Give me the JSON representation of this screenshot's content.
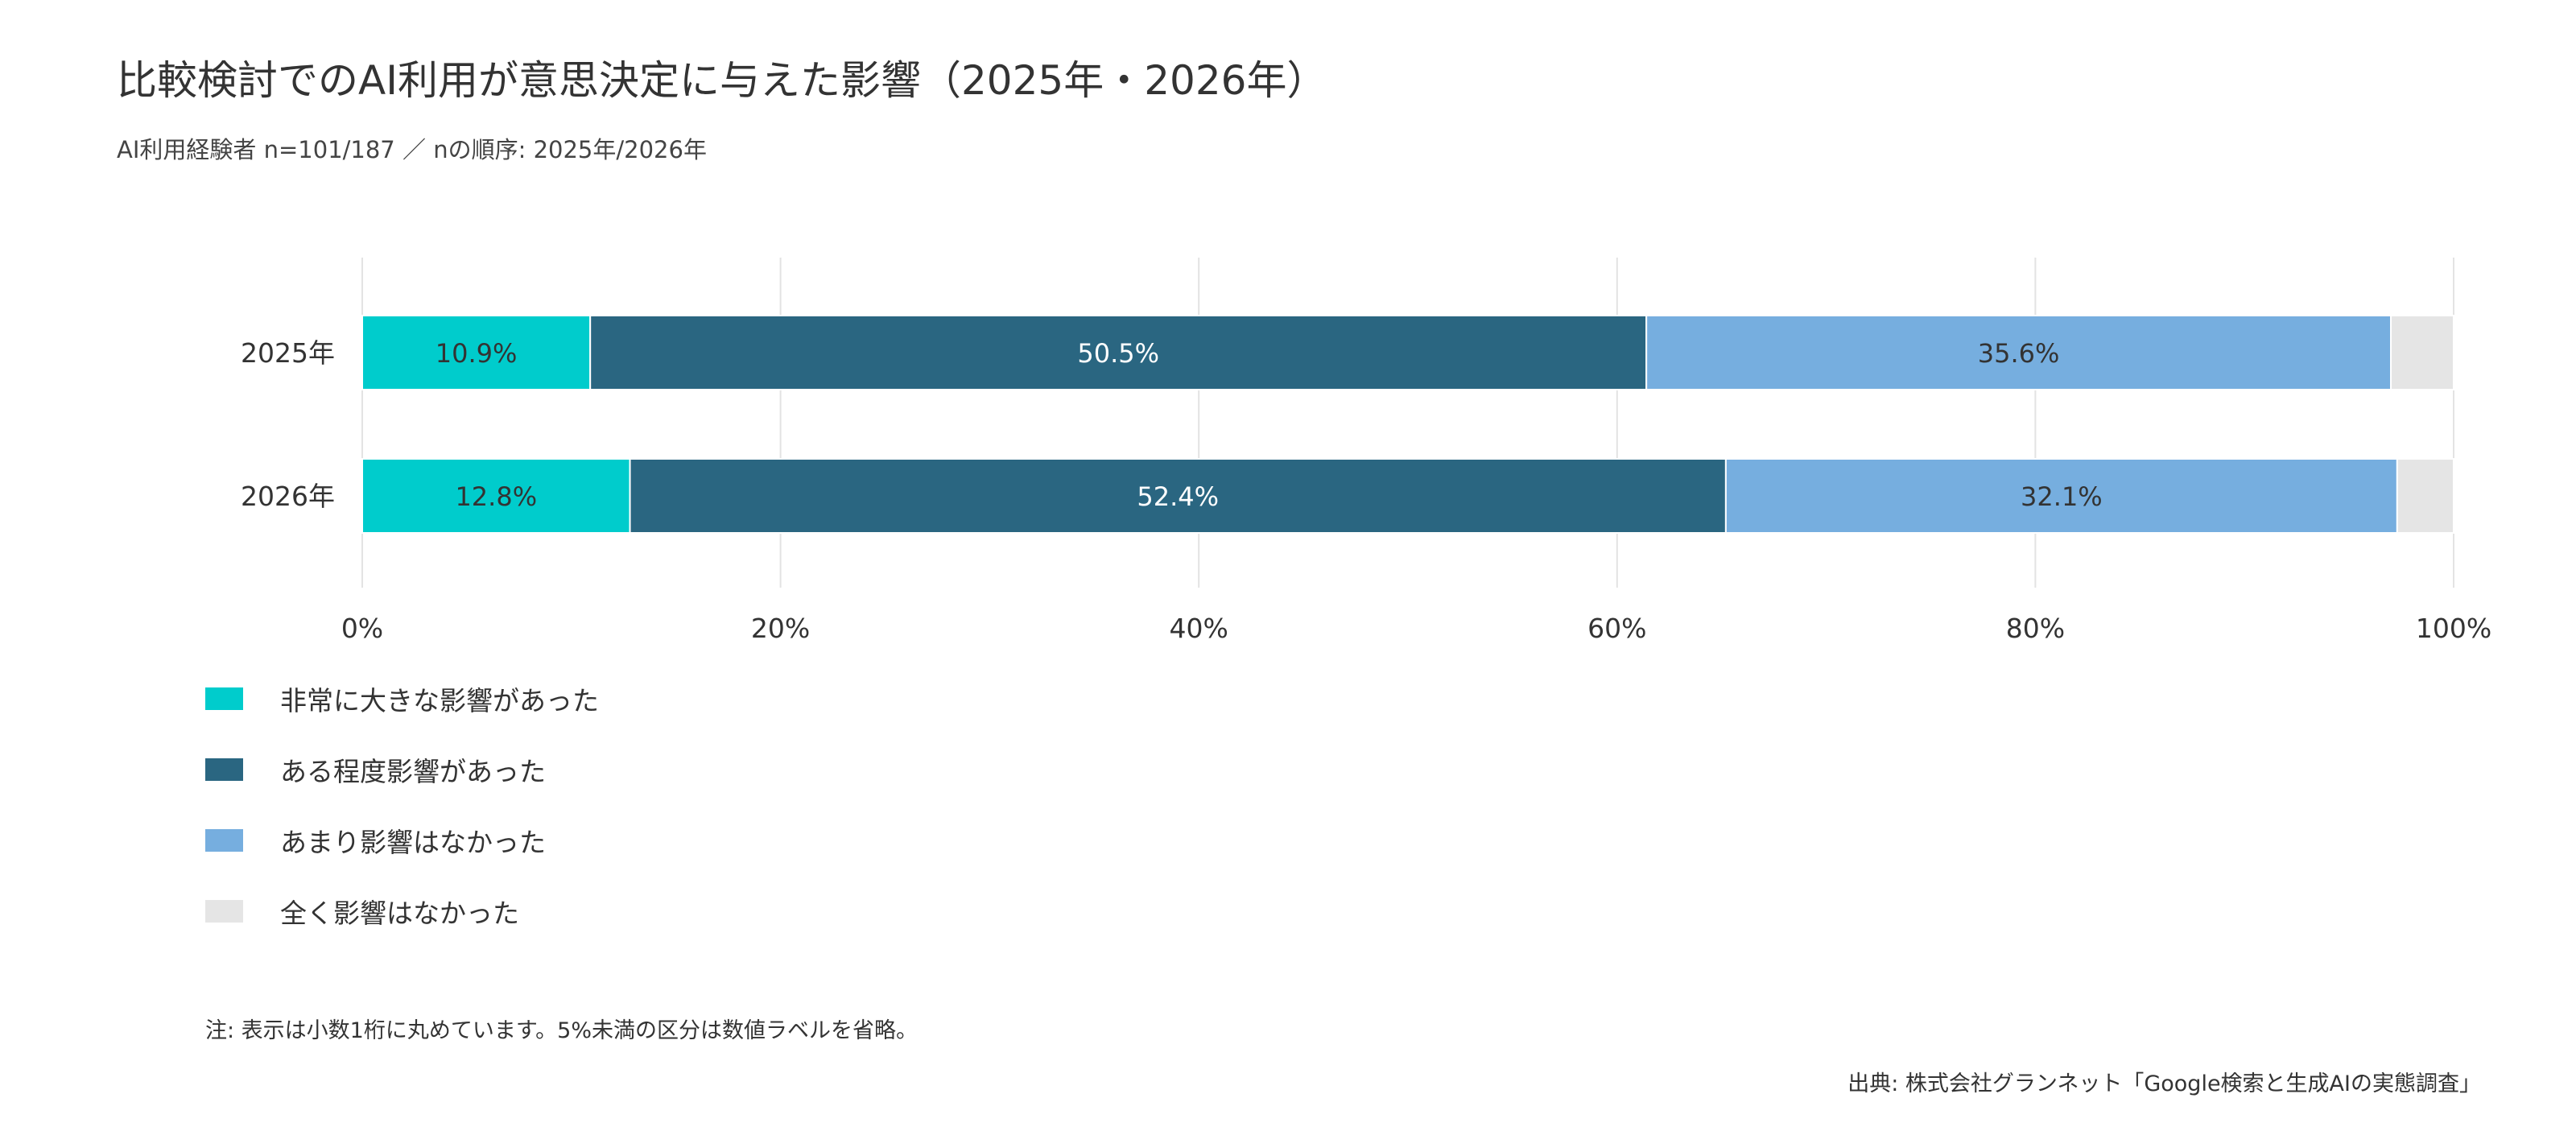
{
  "title": "比較検討でのAI利用が意思決定に与えた影響（2025年・2026年）",
  "subtitle": "AI利用経験者 n=101/187 ／ nの順序: 2025年/2026年",
  "note": "注: 表示は小数1桁に丸めています。5%未満の区分は数値ラベルを省略。",
  "source": "出典: 株式会社グランネット「Google検索と生成AIの実態調査」",
  "chart_data": {
    "type": "bar",
    "orientation": "horizontal",
    "stacked": true,
    "categories": [
      "2025年",
      "2026年"
    ],
    "series": [
      {
        "name": "非常に大きな影響があった",
        "color": "#00CCCC",
        "label_color": "#333333",
        "values": [
          10.9,
          12.8
        ]
      },
      {
        "name": "ある程度影響があった",
        "color": "#2A6681",
        "label_color": "#ffffff",
        "values": [
          50.5,
          52.4
        ]
      },
      {
        "name": "あまり影響はなかった",
        "color": "#76AEDF",
        "label_color": "#333333",
        "values": [
          35.6,
          32.1
        ]
      },
      {
        "name": "全く影響はなかった",
        "color": "#E5E5E5",
        "label_color": "#333333",
        "values": [
          3.0,
          2.7
        ]
      }
    ],
    "xlim": [
      0,
      100
    ],
    "xticks": [
      "0%",
      "20%",
      "40%",
      "60%",
      "80%",
      "100%"
    ],
    "grid": true,
    "legend_position": "bottom-left",
    "label_threshold": 5
  }
}
